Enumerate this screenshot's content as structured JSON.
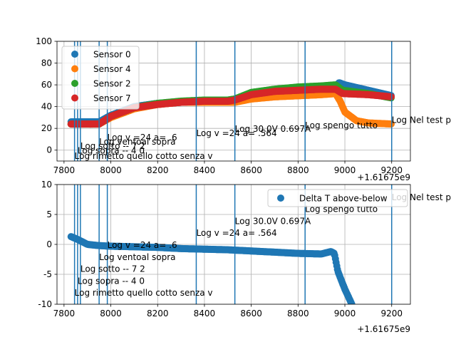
{
  "x_offset_label": "+1.61675e9",
  "annotations_vlines": [
    7845,
    7858,
    7870,
    7950,
    7985,
    8365,
    8530,
    8830,
    9200
  ],
  "chart_data": [
    {
      "type": "scatter",
      "title": "",
      "xlabel": "",
      "ylabel": "",
      "xlim": [
        7770,
        9280
      ],
      "ylim": [
        -10,
        100
      ],
      "xticks": [
        7800,
        8000,
        8200,
        8400,
        8600,
        8800,
        9000,
        9200
      ],
      "yticks": [
        0,
        20,
        40,
        60,
        80,
        100
      ],
      "grid": true,
      "legend_position": "upper-left",
      "series": [
        {
          "name": "Sensor 0",
          "color": "#1f77b4",
          "x": [
            7830,
            7950,
            8000,
            8100,
            8200,
            8300,
            8400,
            8500,
            8530,
            8600,
            8700,
            8800,
            8900,
            8960,
            8975,
            9000,
            9100,
            9200
          ],
          "y": [
            26,
            26,
            32,
            40,
            43,
            44,
            45,
            45,
            46,
            51,
            54,
            56,
            57,
            58,
            62,
            60,
            55,
            50
          ]
        },
        {
          "name": "Sensor 4",
          "color": "#ff7f0e",
          "x": [
            7830,
            7950,
            8000,
            8100,
            8200,
            8300,
            8400,
            8500,
            8530,
            8600,
            8700,
            8800,
            8900,
            8960,
            8980,
            9000,
            9050,
            9100,
            9200
          ],
          "y": [
            24,
            24,
            30,
            38,
            42,
            44,
            44,
            44,
            44,
            47,
            49,
            50,
            51,
            52,
            45,
            35,
            27,
            25,
            24
          ]
        },
        {
          "name": "Sensor 2",
          "color": "#2ca02c",
          "x": [
            7830,
            7950,
            8000,
            8100,
            8200,
            8300,
            8400,
            8500,
            8530,
            8600,
            8700,
            8800,
            8900,
            8960,
            8990,
            9100,
            9200
          ],
          "y": [
            24,
            24,
            31,
            39,
            43,
            45,
            46,
            46,
            47,
            53,
            56,
            58,
            59,
            60,
            55,
            52,
            48
          ]
        },
        {
          "name": "Sensor 7",
          "color": "#d62728",
          "x": [
            7830,
            7950,
            8000,
            8100,
            8200,
            8300,
            8400,
            8500,
            8530,
            8600,
            8700,
            8800,
            8900,
            8960,
            8990,
            9100,
            9200
          ],
          "y": [
            24,
            24,
            31,
            39,
            42,
            44,
            45,
            45,
            46,
            51,
            54,
            55,
            56,
            56,
            52,
            51,
            49
          ]
        }
      ],
      "annotations": [
        {
          "text": "Log v =24 a= .6",
          "x": 7985,
          "y": 9
        },
        {
          "text": "Log ventoal sopra",
          "x": 7950,
          "y": 5
        },
        {
          "text": "Log sotto -- 7 2",
          "x": 7870,
          "y": 1
        },
        {
          "text": "Log sopra -- 4 0",
          "x": 7858,
          "y": -3
        },
        {
          "text": "Log rimetto quello cotto senza v",
          "x": 7845,
          "y": -8
        },
        {
          "text": "Log v =24 a= .564",
          "x": 8365,
          "y": 13
        },
        {
          "text": "Log 30.0V 0.697A",
          "x": 8530,
          "y": 17
        },
        {
          "text": "Log spengo tutto",
          "x": 8830,
          "y": 20
        },
        {
          "text": "Log Nel test p",
          "x": 9200,
          "y": 25
        }
      ]
    },
    {
      "type": "scatter",
      "title": "",
      "xlabel": "",
      "ylabel": "",
      "xlim": [
        7770,
        9280
      ],
      "ylim": [
        -10,
        10
      ],
      "xticks": [
        7800,
        8000,
        8200,
        8400,
        8600,
        8800,
        9000,
        9200
      ],
      "yticks": [
        -10,
        -5,
        0,
        5,
        10
      ],
      "grid": true,
      "legend_position": "upper-right",
      "series": [
        {
          "name": "Delta T above-below",
          "color": "#1f77b4",
          "x": [
            7830,
            7860,
            7900,
            7950,
            8000,
            8100,
            8200,
            8300,
            8400,
            8500,
            8600,
            8700,
            8800,
            8900,
            8940,
            8955,
            8970,
            9000,
            9030
          ],
          "y": [
            1.3,
            0.8,
            0.0,
            -0.2,
            -0.3,
            -0.4,
            -0.5,
            -0.7,
            -0.8,
            -0.9,
            -1.1,
            -1.3,
            -1.5,
            -1.6,
            -1.2,
            -1.5,
            -4.5,
            -7.5,
            -10.0
          ]
        }
      ],
      "annotations": [
        {
          "text": "Log v =24 a= .6",
          "x": 7985,
          "y": -0.6
        },
        {
          "text": "Log ventoal sopra",
          "x": 7950,
          "y": -2.6
        },
        {
          "text": "Log sotto -- 7 2",
          "x": 7870,
          "y": -4.6
        },
        {
          "text": "Log sopra -- 4 0",
          "x": 7858,
          "y": -6.6
        },
        {
          "text": "Log rimetto quello cotto senza v",
          "x": 7845,
          "y": -8.6
        },
        {
          "text": "Log v =24 a= .564",
          "x": 8365,
          "y": 1.4
        },
        {
          "text": "Log 30.0V 0.697A",
          "x": 8530,
          "y": 3.4
        },
        {
          "text": "Log spengo tutto",
          "x": 8830,
          "y": 5.4
        },
        {
          "text": "Log Nel test p",
          "x": 9200,
          "y": 7.4
        }
      ]
    }
  ]
}
